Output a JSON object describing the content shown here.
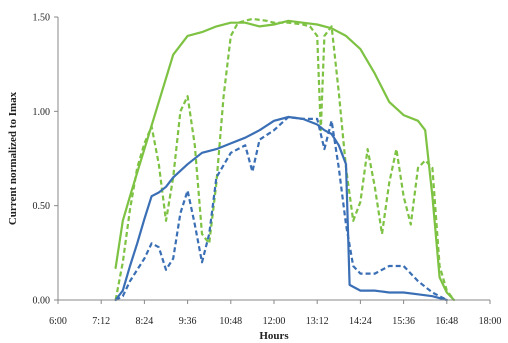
{
  "chart_data": {
    "type": "line",
    "xlabel": "Hours",
    "ylabel": "Current normalized to Imax",
    "x_ticks": [
      "6:00",
      "7:12",
      "8:24",
      "9:36",
      "10:48",
      "12:00",
      "13:12",
      "14:24",
      "15:36",
      "16:48",
      "18:00"
    ],
    "y_ticks": [
      "0.00",
      "0.50",
      "1.00",
      "1.50"
    ],
    "xlim": [
      "6:00",
      "18:00"
    ],
    "ylim": [
      0,
      1.5
    ],
    "grid": false,
    "legend": "none",
    "series": [
      {
        "color": "#7dc242",
        "style": "solid",
        "points": [
          [
            "7:36",
            0.17
          ],
          [
            "7:48",
            0.42
          ],
          [
            "8:00",
            0.55
          ],
          [
            "8:24",
            0.8
          ],
          [
            "8:48",
            1.05
          ],
          [
            "9:12",
            1.3
          ],
          [
            "9:36",
            1.4
          ],
          [
            "10:00",
            1.42
          ],
          [
            "10:24",
            1.45
          ],
          [
            "10:48",
            1.47
          ],
          [
            "11:12",
            1.47
          ],
          [
            "11:36",
            1.45
          ],
          [
            "12:00",
            1.46
          ],
          [
            "12:24",
            1.48
          ],
          [
            "12:48",
            1.47
          ],
          [
            "13:12",
            1.46
          ],
          [
            "13:36",
            1.44
          ],
          [
            "14:00",
            1.4
          ],
          [
            "14:24",
            1.33
          ],
          [
            "14:48",
            1.2
          ],
          [
            "15:12",
            1.05
          ],
          [
            "15:36",
            0.98
          ],
          [
            "16:00",
            0.95
          ],
          [
            "16:12",
            0.9
          ],
          [
            "16:24",
            0.55
          ],
          [
            "16:36",
            0.12
          ],
          [
            "16:48",
            0.04
          ],
          [
            "17:00",
            0.0
          ]
        ]
      },
      {
        "color": "#7dc242",
        "style": "dashed",
        "points": [
          [
            "7:36",
            0.0
          ],
          [
            "7:48",
            0.2
          ],
          [
            "8:00",
            0.48
          ],
          [
            "8:12",
            0.7
          ],
          [
            "8:24",
            0.83
          ],
          [
            "8:36",
            0.92
          ],
          [
            "8:48",
            0.72
          ],
          [
            "9:00",
            0.42
          ],
          [
            "9:12",
            0.65
          ],
          [
            "9:24",
            1.0
          ],
          [
            "9:36",
            1.08
          ],
          [
            "9:48",
            0.82
          ],
          [
            "10:00",
            0.35
          ],
          [
            "10:12",
            0.3
          ],
          [
            "10:24",
            0.62
          ],
          [
            "10:36",
            1.08
          ],
          [
            "10:48",
            1.4
          ],
          [
            "11:00",
            1.47
          ],
          [
            "11:24",
            1.49
          ],
          [
            "11:48",
            1.48
          ],
          [
            "12:00",
            1.47
          ],
          [
            "12:24",
            1.47
          ],
          [
            "12:48",
            1.46
          ],
          [
            "13:00",
            1.45
          ],
          [
            "13:12",
            1.4
          ],
          [
            "13:18",
            0.9
          ],
          [
            "13:24",
            1.4
          ],
          [
            "13:36",
            1.45
          ],
          [
            "13:48",
            1.1
          ],
          [
            "14:00",
            0.7
          ],
          [
            "14:12",
            0.42
          ],
          [
            "14:24",
            0.52
          ],
          [
            "14:36",
            0.8
          ],
          [
            "14:48",
            0.6
          ],
          [
            "15:00",
            0.35
          ],
          [
            "15:12",
            0.62
          ],
          [
            "15:24",
            0.8
          ],
          [
            "15:36",
            0.55
          ],
          [
            "15:48",
            0.4
          ],
          [
            "16:00",
            0.7
          ],
          [
            "16:12",
            0.74
          ],
          [
            "16:24",
            0.7
          ],
          [
            "16:36",
            0.18
          ],
          [
            "16:48",
            0.05
          ],
          [
            "17:00",
            0.0
          ]
        ]
      },
      {
        "color": "#3a6fb5",
        "style": "solid",
        "points": [
          [
            "7:36",
            0.0
          ],
          [
            "7:48",
            0.05
          ],
          [
            "8:00",
            0.18
          ],
          [
            "8:12",
            0.3
          ],
          [
            "8:24",
            0.43
          ],
          [
            "8:36",
            0.55
          ],
          [
            "8:48",
            0.57
          ],
          [
            "9:00",
            0.6
          ],
          [
            "9:12",
            0.65
          ],
          [
            "9:36",
            0.72
          ],
          [
            "10:00",
            0.78
          ],
          [
            "10:24",
            0.8
          ],
          [
            "10:48",
            0.83
          ],
          [
            "11:12",
            0.86
          ],
          [
            "11:36",
            0.9
          ],
          [
            "12:00",
            0.95
          ],
          [
            "12:24",
            0.97
          ],
          [
            "12:48",
            0.96
          ],
          [
            "13:12",
            0.93
          ],
          [
            "13:24",
            0.9
          ],
          [
            "13:36",
            0.88
          ],
          [
            "13:48",
            0.82
          ],
          [
            "14:00",
            0.72
          ],
          [
            "14:06",
            0.08
          ],
          [
            "14:24",
            0.05
          ],
          [
            "14:48",
            0.05
          ],
          [
            "15:12",
            0.04
          ],
          [
            "15:36",
            0.04
          ],
          [
            "16:00",
            0.03
          ],
          [
            "16:24",
            0.02
          ],
          [
            "16:48",
            0.0
          ]
        ]
      },
      {
        "color": "#3a6fb5",
        "style": "dashed",
        "points": [
          [
            "7:36",
            0.0
          ],
          [
            "7:48",
            0.02
          ],
          [
            "8:00",
            0.1
          ],
          [
            "8:24",
            0.22
          ],
          [
            "8:36",
            0.3
          ],
          [
            "8:48",
            0.28
          ],
          [
            "9:00",
            0.16
          ],
          [
            "9:12",
            0.22
          ],
          [
            "9:24",
            0.46
          ],
          [
            "9:36",
            0.58
          ],
          [
            "9:48",
            0.4
          ],
          [
            "10:00",
            0.2
          ],
          [
            "10:12",
            0.35
          ],
          [
            "10:24",
            0.65
          ],
          [
            "10:48",
            0.78
          ],
          [
            "11:12",
            0.82
          ],
          [
            "11:24",
            0.68
          ],
          [
            "11:36",
            0.85
          ],
          [
            "12:00",
            0.9
          ],
          [
            "12:24",
            0.97
          ],
          [
            "12:48",
            0.96
          ],
          [
            "13:12",
            0.96
          ],
          [
            "13:24",
            0.8
          ],
          [
            "13:36",
            0.95
          ],
          [
            "13:48",
            0.7
          ],
          [
            "14:00",
            0.4
          ],
          [
            "14:12",
            0.18
          ],
          [
            "14:24",
            0.14
          ],
          [
            "14:48",
            0.14
          ],
          [
            "15:12",
            0.18
          ],
          [
            "15:36",
            0.18
          ],
          [
            "16:00",
            0.1
          ],
          [
            "16:24",
            0.04
          ],
          [
            "16:48",
            0.0
          ]
        ]
      }
    ]
  }
}
